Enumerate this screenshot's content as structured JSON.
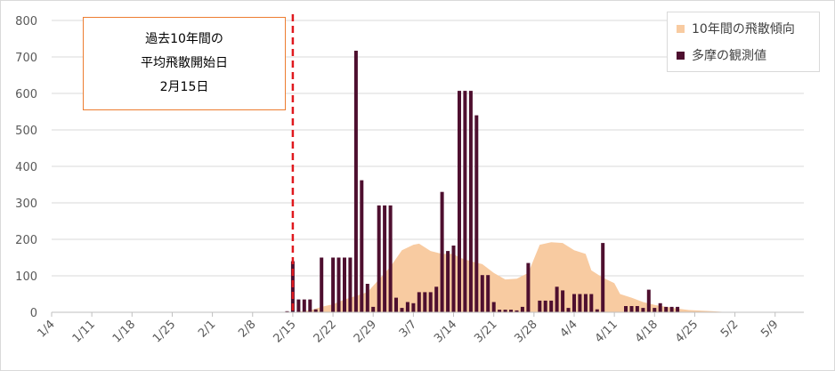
{
  "chart_data": {
    "type": "bar",
    "ylim": [
      0,
      800
    ],
    "yticks": [
      0,
      100,
      200,
      300,
      400,
      500,
      600,
      700,
      800
    ],
    "x_start_date": "1/4",
    "x_end_date": "5/14",
    "xtick_labels": [
      "1/4",
      "1/11",
      "1/18",
      "1/25",
      "2/1",
      "2/8",
      "2/15",
      "2/22",
      "2/29",
      "3/7",
      "3/14",
      "3/21",
      "3/28",
      "4/4",
      "4/11",
      "4/18",
      "4/25",
      "5/2",
      "5/9"
    ],
    "grid": true,
    "legend_position": "top-right",
    "annotation": {
      "lines": [
        "過去10年間の",
        "平均飛散開始日",
        "2月15日"
      ],
      "marker_date": "2/15"
    },
    "series": [
      {
        "name": "10年間の飛散傾向",
        "kind": "area",
        "color": "#f8cba1",
        "points": [
          [
            "2/15",
            0
          ],
          [
            "2/18",
            5
          ],
          [
            "2/20",
            15
          ],
          [
            "2/22",
            22
          ],
          [
            "2/24",
            35
          ],
          [
            "2/26",
            45
          ],
          [
            "2/28",
            55
          ],
          [
            "3/1",
            90
          ],
          [
            "3/3",
            125
          ],
          [
            "3/5",
            170
          ],
          [
            "3/7",
            185
          ],
          [
            "3/8",
            188
          ],
          [
            "3/10",
            168
          ],
          [
            "3/12",
            160
          ],
          [
            "3/14",
            160
          ],
          [
            "3/15",
            150
          ],
          [
            "3/17",
            140
          ],
          [
            "3/19",
            132
          ],
          [
            "3/21",
            108
          ],
          [
            "3/23",
            90
          ],
          [
            "3/25",
            92
          ],
          [
            "3/27",
            108
          ],
          [
            "3/29",
            185
          ],
          [
            "3/31",
            192
          ],
          [
            "4/2",
            190
          ],
          [
            "4/4",
            170
          ],
          [
            "4/6",
            160
          ],
          [
            "4/7",
            115
          ],
          [
            "4/9",
            95
          ],
          [
            "4/11",
            80
          ],
          [
            "4/12",
            50
          ],
          [
            "4/14",
            40
          ],
          [
            "4/16",
            28
          ],
          [
            "4/18",
            20
          ],
          [
            "4/20",
            15
          ],
          [
            "4/22",
            10
          ],
          [
            "4/24",
            6
          ],
          [
            "4/28",
            3
          ],
          [
            "5/1",
            0
          ]
        ]
      },
      {
        "name": "多摩の観測値",
        "kind": "bar",
        "color": "#4e0f2f",
        "points": [
          [
            "2/14",
            3
          ],
          [
            "2/15",
            140
          ],
          [
            "2/16",
            35
          ],
          [
            "2/17",
            35
          ],
          [
            "2/18",
            35
          ],
          [
            "2/19",
            8
          ],
          [
            "2/20",
            150
          ],
          [
            "2/22",
            150
          ],
          [
            "2/23",
            150
          ],
          [
            "2/24",
            150
          ],
          [
            "2/25",
            150
          ],
          [
            "2/26",
            717
          ],
          [
            "2/27",
            362
          ],
          [
            "2/28",
            78
          ],
          [
            "2/29",
            15
          ],
          [
            "3/1",
            293
          ],
          [
            "3/2",
            293
          ],
          [
            "3/3",
            293
          ],
          [
            "3/4",
            40
          ],
          [
            "3/5",
            12
          ],
          [
            "3/6",
            28
          ],
          [
            "3/7",
            25
          ],
          [
            "3/8",
            55
          ],
          [
            "3/9",
            55
          ],
          [
            "3/10",
            55
          ],
          [
            "3/11",
            70
          ],
          [
            "3/12",
            330
          ],
          [
            "3/13",
            168
          ],
          [
            "3/14",
            183
          ],
          [
            "3/15",
            607
          ],
          [
            "3/16",
            607
          ],
          [
            "3/17",
            607
          ],
          [
            "3/18",
            540
          ],
          [
            "3/19",
            102
          ],
          [
            "3/20",
            102
          ],
          [
            "3/21",
            28
          ],
          [
            "3/22",
            7
          ],
          [
            "3/23",
            7
          ],
          [
            "3/24",
            7
          ],
          [
            "3/25",
            5
          ],
          [
            "3/26",
            15
          ],
          [
            "3/27",
            135
          ],
          [
            "3/29",
            32
          ],
          [
            "3/30",
            32
          ],
          [
            "3/31",
            32
          ],
          [
            "4/1",
            70
          ],
          [
            "4/2",
            60
          ],
          [
            "4/3",
            12
          ],
          [
            "4/4",
            50
          ],
          [
            "4/5",
            50
          ],
          [
            "4/6",
            50
          ],
          [
            "4/7",
            50
          ],
          [
            "4/8",
            8
          ],
          [
            "4/9",
            190
          ],
          [
            "4/13",
            17
          ],
          [
            "4/14",
            17
          ],
          [
            "4/15",
            17
          ],
          [
            "4/16",
            12
          ],
          [
            "4/17",
            62
          ],
          [
            "4/18",
            12
          ],
          [
            "4/19",
            25
          ],
          [
            "4/20",
            15
          ],
          [
            "4/21",
            15
          ],
          [
            "4/22",
            15
          ]
        ]
      }
    ]
  }
}
